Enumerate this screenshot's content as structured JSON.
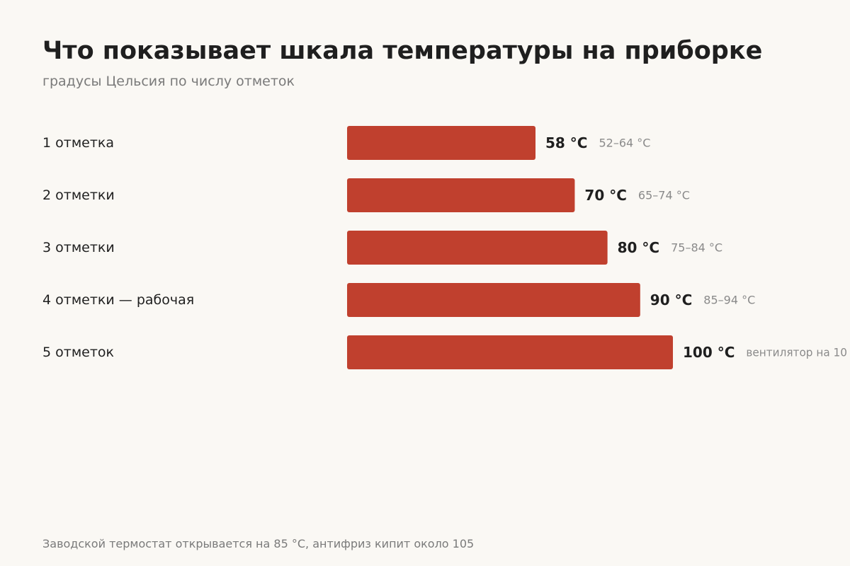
{
  "chart_data": {
    "type": "bar",
    "orientation": "horizontal",
    "title": "Что показывает шкала температуры на приборке",
    "subtitle": "градусы Цельсия по числу отметок",
    "categories": [
      "1 отметка",
      "2 отметки",
      "3 отметки",
      "4 отметки — рабочая",
      "5 отметок"
    ],
    "values": [
      58,
      70,
      80,
      90,
      100
    ],
    "value_labels": [
      "58 °C",
      "70 °C",
      "80 °C",
      "90 °C",
      "100 °C"
    ],
    "notes": [
      "52–64 °C",
      "65–74 °C",
      "75–84 °C",
      "85–94 °C",
      "вентилятор на 10"
    ],
    "bar_color": "#c0402e",
    "xlim": [
      0,
      100
    ],
    "grid": false,
    "legend": "none"
  },
  "footnote": "Заводской термостат открывается на 85 °C, антифриз кипит около 105"
}
